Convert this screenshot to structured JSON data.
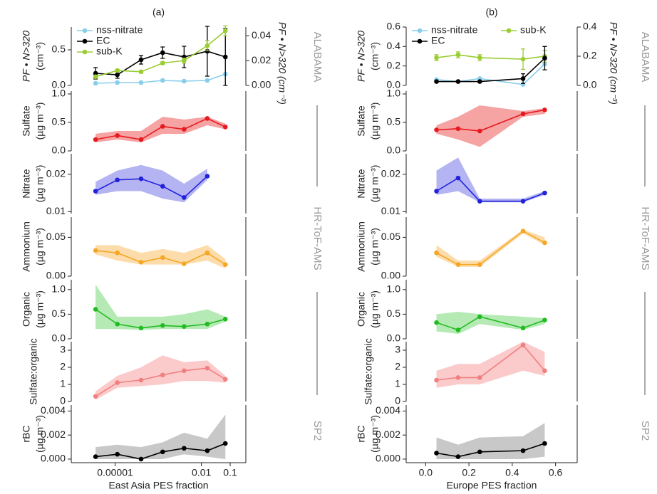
{
  "side_labels": [
    [
      "ALABAMA",
      "HR-ToF-AMS",
      "SP2"
    ],
    [
      "ALABAMA",
      "HR-ToF-AMS",
      "SP2"
    ]
  ],
  "chart_data": [
    {
      "type": "line",
      "title": "(a)",
      "xlog": true,
      "x": [
        2.1e-06,
        1.2e-05,
        8e-05,
        0.00045,
        0.0025,
        0.016,
        0.068
      ],
      "xlim": [
        3e-07,
        0.35
      ],
      "ylabel": [
        "PF • N>320",
        "(cm⁻³)"
      ],
      "ylim": [
        0,
        0.82
      ],
      "yticks": [
        {
          "value": 0,
          "label": "0.0"
        },
        {
          "value": 0.5,
          "label": "0.5"
        }
      ],
      "y2label": "PF • N>320 (cm⁻³)",
      "y2lim": [
        0,
        0.047
      ],
      "y2ticks": [
        {
          "value": 0,
          "label": "0.00"
        },
        {
          "value": 0.02,
          "label": "0.02"
        },
        {
          "value": 0.04,
          "label": "0.04"
        }
      ],
      "legend": "upper left",
      "legend_ncol": 1,
      "series": [
        {
          "name": "nss-nitrate",
          "color": "#87ceeb",
          "values": [
            0.03,
            0.04,
            0.04,
            0.07,
            0.06,
            0.07,
            0.16
          ]
        },
        {
          "name": "EC",
          "color": "#000000",
          "values": [
            0.17,
            0.15,
            0.36,
            0.46,
            0.4,
            0.48,
            0.4
          ],
          "errors": [
            0.08,
            0.05,
            0.06,
            0.08,
            0.15,
            0.35,
            0.4
          ]
        },
        {
          "name": "sub-K",
          "color": "#9acd32",
          "axis": "y2",
          "values": [
            0.007,
            0.012,
            0.011,
            0.018,
            0.02,
            0.032,
            0.044
          ],
          "errors": [
            0.001,
            0.001,
            0.001,
            0.001,
            0.002,
            0.004,
            0.004
          ]
        }
      ]
    },
    {
      "type": "line",
      "xlog": true,
      "x": [
        2.1e-06,
        1.2e-05,
        8e-05,
        0.00045,
        0.0025,
        0.016,
        0.068
      ],
      "xlim": [
        3e-07,
        0.35
      ],
      "ylabel": [
        "Sulfate",
        "(µg m⁻³)"
      ],
      "ylim": [
        0,
        1.05
      ],
      "yticks": [
        {
          "value": 0,
          "label": "0.0"
        },
        {
          "value": 0.5,
          "label": "0.5"
        },
        {
          "value": 1,
          "label": "1.0"
        }
      ],
      "series": [
        {
          "color": "#e8191e",
          "band_color": "#f5a3a3",
          "values": [
            0.2,
            0.27,
            0.2,
            0.43,
            0.38,
            0.57,
            0.42
          ],
          "lower": [
            0.15,
            0.2,
            0.15,
            0.3,
            0.3,
            0.45,
            0.38
          ],
          "upper": [
            0.3,
            0.35,
            0.35,
            0.6,
            0.55,
            0.6,
            0.48
          ]
        }
      ]
    },
    {
      "type": "line",
      "xlog": true,
      "x": [
        2.1e-06,
        1.2e-05,
        8e-05,
        0.00045,
        0.0025,
        0.016,
        0.068
      ],
      "xlim": [
        3e-07,
        0.35
      ],
      "ylabel": [
        "Nitrate",
        "(µg m⁻³)"
      ],
      "ylim": [
        0.0095,
        0.0255
      ],
      "yticks": [
        0.01,
        0.02
      ],
      "series": [
        {
          "color": "#2222dd",
          "band_color": "#b4b4f2",
          "values": [
            0.0155,
            0.0185,
            0.0188,
            0.0168,
            0.0138,
            0.0195,
            null
          ],
          "lower": [
            0.0145,
            0.0155,
            0.0155,
            0.0135,
            0.0125,
            0.0185,
            null
          ],
          "upper": [
            0.018,
            0.021,
            0.0225,
            0.021,
            0.0175,
            0.0215,
            null
          ]
        }
      ]
    },
    {
      "type": "line",
      "xlog": true,
      "x": [
        2.1e-06,
        1.2e-05,
        8e-05,
        0.00045,
        0.0025,
        0.016,
        0.068
      ],
      "xlim": [
        3e-07,
        0.35
      ],
      "ylabel": [
        "Ammonium",
        "(µg m⁻³)"
      ],
      "ylim": [
        0,
        0.076
      ],
      "yticks": [
        {
          "value": 0,
          "label": "0.00"
        },
        {
          "value": 0.05,
          "label": "0.05"
        }
      ],
      "series": [
        {
          "color": "#f5a623",
          "band_color": "#fcdcaa",
          "values": [
            0.033,
            0.03,
            0.018,
            0.024,
            0.016,
            0.03,
            0.015
          ],
          "lower": [
            0.028,
            0.02,
            0.015,
            0.015,
            0.015,
            0.02,
            0.01
          ],
          "upper": [
            0.04,
            0.04,
            0.03,
            0.035,
            0.03,
            0.04,
            0.022
          ]
        }
      ]
    },
    {
      "type": "line",
      "xlog": true,
      "x": [
        2.1e-06,
        1.2e-05,
        8e-05,
        0.00045,
        0.0025,
        0.016,
        0.068
      ],
      "xlim": [
        3e-07,
        0.35
      ],
      "ylabel": [
        "Organic",
        "(µg m⁻³)"
      ],
      "ylim": [
        0,
        1.2
      ],
      "yticks": [
        {
          "value": 0,
          "label": "0.0"
        },
        {
          "value": 0.5,
          "label": "0.5"
        },
        {
          "value": 1,
          "label": "1.0"
        }
      ],
      "series": [
        {
          "color": "#22bb22",
          "band_color": "#b5eab5",
          "values": [
            0.6,
            0.3,
            0.22,
            0.27,
            0.25,
            0.3,
            0.4
          ],
          "lower": [
            0.2,
            0.2,
            0.18,
            0.2,
            0.2,
            0.2,
            0.35
          ],
          "upper": [
            1.1,
            0.45,
            0.45,
            0.45,
            0.5,
            0.6,
            0.45
          ]
        }
      ]
    },
    {
      "type": "line",
      "xlog": true,
      "x": [
        2.1e-06,
        1.2e-05,
        8e-05,
        0.00045,
        0.0025,
        0.016,
        0.068
      ],
      "xlim": [
        3e-07,
        0.35
      ],
      "ylabel": [
        "Sulfate:organic"
      ],
      "ylim": [
        0,
        3.5
      ],
      "yticks": [
        0,
        1,
        2,
        3
      ],
      "series": [
        {
          "color": "#f08080",
          "band_color": "#fbcaca",
          "values": [
            0.3,
            1.1,
            1.25,
            1.55,
            1.8,
            1.95,
            1.3
          ],
          "lower": [
            0.1,
            0.8,
            0.9,
            1.0,
            1.2,
            1.2,
            1.1
          ],
          "upper": [
            0.6,
            1.5,
            2.0,
            2.7,
            2.3,
            2.4,
            1.5
          ]
        }
      ]
    },
    {
      "type": "line",
      "xlog": true,
      "x": [
        2.1e-06,
        1.2e-05,
        8e-05,
        0.00045,
        0.0025,
        0.016,
        0.068
      ],
      "xlim": [
        3e-07,
        0.35
      ],
      "xlabel": "East Asia PES fraction",
      "xticks": [
        1e-05,
        0.01,
        0.1
      ],
      "ylabel": [
        "rBC",
        "(µg m⁻³)"
      ],
      "ylim": [
        -0.0003,
        0.0045
      ],
      "yticks": [
        {
          "value": 0,
          "label": "0.000"
        },
        {
          "value": 0.002,
          "label": "0.002"
        },
        {
          "value": 0.004,
          "label": "0.004"
        }
      ],
      "series": [
        {
          "color": "#000000",
          "band_color": "#c8c8c8",
          "values": [
            0.0002,
            0.0004,
            0.0,
            0.0006,
            0.0009,
            0.0007,
            0.0013
          ],
          "lower": [
            0.0,
            0.0,
            0.0,
            0.0,
            0.0004,
            0.0002,
            0.0
          ],
          "upper": [
            0.001,
            0.0012,
            0.001,
            0.0014,
            0.0022,
            0.0017,
            0.0037
          ]
        }
      ]
    },
    {
      "type": "line",
      "title": "(b)",
      "x": [
        0.05,
        0.15,
        0.25,
        0.45,
        0.55
      ],
      "xlim": [
        -0.09,
        0.7
      ],
      "ylabel": [
        "PF • N>320",
        "(cm⁻³)"
      ],
      "ylim": [
        0,
        0.6
      ],
      "yticks": [
        {
          "value": 0,
          "label": "0.0"
        },
        {
          "value": 0.2,
          "label": "0.2"
        },
        {
          "value": 0.4,
          "label": "0.4"
        },
        {
          "value": 0.6,
          "label": "0.6"
        }
      ],
      "y2label": "PF • N>320 (cm⁻³)",
      "y2lim": [
        0,
        0.4
      ],
      "y2ticks": [
        {
          "value": 0,
          "label": "0.0"
        },
        {
          "value": 0.2,
          "label": "0.2"
        },
        {
          "value": 0.4,
          "label": "0.4"
        }
      ],
      "legend": "upper left",
      "legend_ncol": 2,
      "series": [
        {
          "name": "nss-nitrate",
          "color": "#87ceeb",
          "values": [
            0.06,
            0.04,
            0.07,
            0.01,
            0.22
          ]
        },
        {
          "name": "sub-K",
          "color": "#9acd32",
          "axis": "y2",
          "values": [
            0.19,
            0.21,
            0.19,
            0.18,
            0.2
          ],
          "errors": [
            0.02,
            0.02,
            0.02,
            0.07,
            0.04
          ]
        },
        {
          "name": "EC",
          "color": "#000000",
          "values": [
            0.04,
            0.04,
            0.04,
            0.07,
            0.28
          ],
          "errors": [
            0.01,
            0.01,
            0.01,
            0.05,
            0.12
          ]
        }
      ]
    },
    {
      "type": "line",
      "x": [
        0.05,
        0.15,
        0.25,
        0.45,
        0.55
      ],
      "xlim": [
        -0.09,
        0.7
      ],
      "ylabel": [
        "Sulfate",
        "(µg m⁻³)"
      ],
      "ylim": [
        0,
        1.05
      ],
      "yticks": [
        {
          "value": 0,
          "label": "0.0"
        },
        {
          "value": 0.5,
          "label": "0.5"
        },
        {
          "value": 1,
          "label": "1.0"
        }
      ],
      "series": [
        {
          "color": "#e8191e",
          "band_color": "#f5a3a3",
          "values": [
            0.37,
            0.39,
            0.35,
            0.65,
            0.72
          ],
          "lower": [
            0.3,
            0.2,
            0.07,
            0.6,
            0.65
          ],
          "upper": [
            0.45,
            0.6,
            0.8,
            0.7,
            0.75
          ]
        }
      ]
    },
    {
      "type": "line",
      "x": [
        0.05,
        0.15,
        0.25,
        0.45,
        0.55
      ],
      "xlim": [
        -0.09,
        0.7
      ],
      "ylabel": [
        "Nitrate",
        "(µg m⁻³)"
      ],
      "ylim": [
        0.0095,
        0.0255
      ],
      "yticks": [
        0.01,
        0.02
      ],
      "series": [
        {
          "color": "#2222dd",
          "band_color": "#b4b4f2",
          "values": [
            0.0155,
            0.019,
            0.0128,
            0.0128,
            0.015
          ],
          "lower": [
            0.0145,
            0.0155,
            0.0125,
            0.0125,
            0.0145
          ],
          "upper": [
            0.021,
            0.0245,
            0.0135,
            0.0135,
            0.0155
          ]
        }
      ]
    },
    {
      "type": "line",
      "x": [
        0.05,
        0.15,
        0.25,
        0.45,
        0.55
      ],
      "xlim": [
        -0.09,
        0.7
      ],
      "ylabel": [
        "Ammonium",
        "(µg m⁻³)"
      ],
      "ylim": [
        0,
        0.076
      ],
      "yticks": [
        {
          "value": 0,
          "label": "0.00"
        },
        {
          "value": 0.05,
          "label": "0.05"
        }
      ],
      "series": [
        {
          "color": "#f5a623",
          "band_color": "#fcdcaa",
          "values": [
            0.03,
            0.015,
            0.015,
            0.058,
            0.043
          ],
          "lower": [
            0.025,
            0.012,
            0.012,
            0.055,
            0.04
          ],
          "upper": [
            0.04,
            0.02,
            0.02,
            0.06,
            0.05
          ]
        }
      ]
    },
    {
      "type": "line",
      "x": [
        0.05,
        0.15,
        0.25,
        0.45,
        0.55
      ],
      "xlim": [
        -0.09,
        0.7
      ],
      "ylabel": [
        "Organic",
        "(µg m⁻³)"
      ],
      "ylim": [
        0,
        1.2
      ],
      "yticks": [
        {
          "value": 0,
          "label": "0.0"
        },
        {
          "value": 0.5,
          "label": "0.5"
        },
        {
          "value": 1,
          "label": "1.0"
        }
      ],
      "series": [
        {
          "color": "#22bb22",
          "band_color": "#b5eab5",
          "values": [
            0.33,
            0.18,
            0.45,
            0.22,
            0.38
          ],
          "lower": [
            0.15,
            0.1,
            0.3,
            0.18,
            0.3
          ],
          "upper": [
            0.5,
            0.55,
            0.5,
            0.45,
            0.42
          ]
        }
      ]
    },
    {
      "type": "line",
      "x": [
        0.05,
        0.15,
        0.25,
        0.45,
        0.55
      ],
      "xlim": [
        -0.09,
        0.7
      ],
      "ylabel": [
        "Sulfate:organic"
      ],
      "ylim": [
        0,
        3.5
      ],
      "yticks": [
        0,
        1,
        2,
        3
      ],
      "series": [
        {
          "color": "#f08080",
          "band_color": "#fbcaca",
          "values": [
            1.25,
            1.4,
            1.4,
            3.3,
            1.8
          ],
          "lower": [
            0.8,
            1.0,
            1.0,
            1.8,
            1.5
          ],
          "upper": [
            1.8,
            2.2,
            2.2,
            3.5,
            2.9
          ]
        }
      ]
    },
    {
      "type": "line",
      "x": [
        0.05,
        0.15,
        0.25,
        0.45,
        0.55
      ],
      "xlim": [
        -0.09,
        0.7
      ],
      "xlabel": "Europe PES fraction",
      "xticks": [
        {
          "value": 0,
          "label": "0.0"
        },
        {
          "value": 0.2,
          "label": "0.2"
        },
        {
          "value": 0.4,
          "label": "0.4"
        },
        {
          "value": 0.6,
          "label": "0.6"
        }
      ],
      "ylabel": [
        "rBC",
        "(µg m⁻³)"
      ],
      "ylim": [
        -0.0003,
        0.0045
      ],
      "yticks": [
        {
          "value": 0,
          "label": "0.000"
        },
        {
          "value": 0.002,
          "label": "0.002"
        },
        {
          "value": 0.004,
          "label": "0.004"
        }
      ],
      "series": [
        {
          "color": "#000000",
          "band_color": "#c8c8c8",
          "values": [
            0.0005,
            0.0002,
            0.0006,
            0.0007,
            0.0013
          ],
          "lower": [
            0.0,
            0.0,
            0.0,
            0.0,
            0.0002
          ],
          "upper": [
            0.0018,
            0.0012,
            0.0018,
            0.0019,
            0.003
          ]
        }
      ]
    }
  ]
}
